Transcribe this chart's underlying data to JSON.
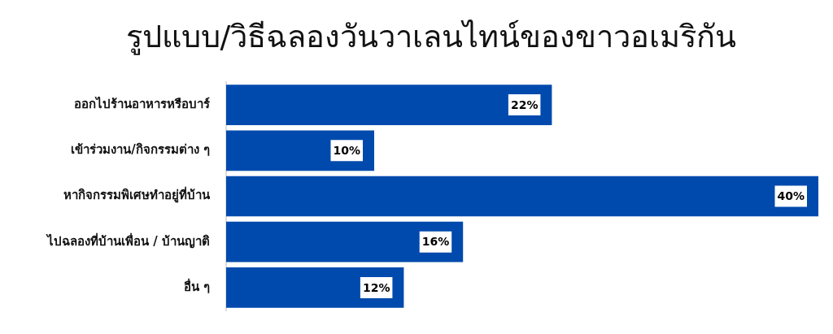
{
  "chart_data": {
    "type": "bar",
    "orientation": "horizontal",
    "title": "รูปแบบ/วิธีฉลองวันวาเลนไทน์ของขาวอเมริกัน",
    "categories": [
      "ออกไปร้านอาหารหรือบาร์",
      "เข้าร่วมงาน/กิจกรรมต่าง ๆ",
      "หากิจกรรมพิเศษทำอยู่ที่บ้าน",
      "ไปฉลองที่บ้านเพื่อน / บ้านญาติ",
      "อื่น ๆ"
    ],
    "values": [
      22,
      10,
      40,
      16,
      12
    ],
    "color": "#004aad",
    "xlim": [
      0,
      40
    ],
    "value_labels": [
      "22%",
      "10%",
      "40%",
      "16%",
      "12%"
    ],
    "tick_labels": "y",
    "legend": false
  }
}
